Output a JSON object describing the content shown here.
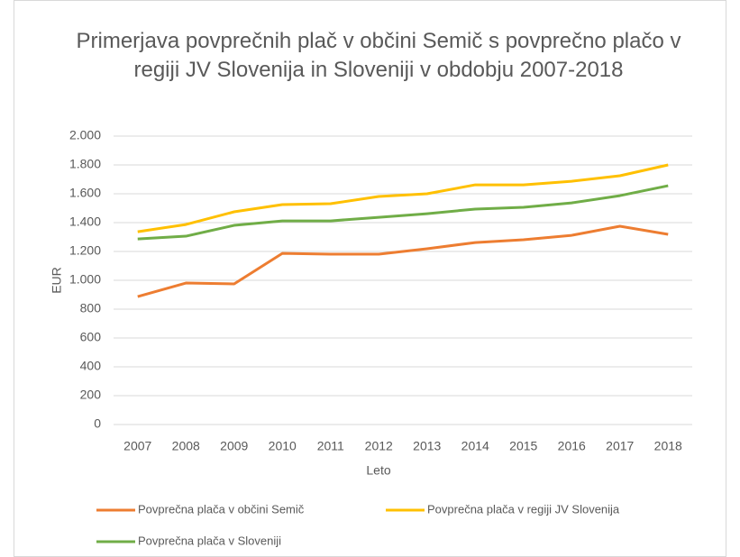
{
  "chart_data": {
    "type": "line",
    "title": "Primerjava povprečnih plač v občini Semič s povprečno plačo v regiji JV Slovenija in Sloveniji v obdobju 2007-2018",
    "xlabel": "Leto",
    "ylabel": "EUR",
    "categories": [
      "2007",
      "2008",
      "2009",
      "2010",
      "2011",
      "2012",
      "2013",
      "2014",
      "2015",
      "2016",
      "2017",
      "2018"
    ],
    "series": [
      {
        "name": "Povprečna plača v občini Semič",
        "color": "#ed7d31",
        "values": [
          887,
          981,
          975,
          1187,
          1181,
          1181,
          1219,
          1262,
          1281,
          1312,
          1375,
          1319
        ]
      },
      {
        "name": "Povprečna plača v regiji JV Slovenija",
        "color": "#ffc000",
        "values": [
          1337,
          1387,
          1475,
          1525,
          1531,
          1581,
          1600,
          1662,
          1662,
          1687,
          1725,
          1800
        ]
      },
      {
        "name": "Povprečna plača v Sloveniji",
        "color": "#70ad47",
        "values": [
          1287,
          1306,
          1381,
          1412,
          1412,
          1437,
          1462,
          1494,
          1506,
          1537,
          1587,
          1656
        ]
      }
    ],
    "ylim": [
      0,
      2000
    ],
    "yticks": [
      0,
      200,
      400,
      600,
      800,
      {
        "value": 1000,
        "label": "1.000"
      },
      {
        "value": 1200,
        "label": "1.200"
      },
      {
        "value": 1400,
        "label": "1.400"
      },
      {
        "value": 1600,
        "label": "1.600"
      },
      {
        "value": 1800,
        "label": "1.800"
      },
      {
        "value": 2000,
        "label": "2.000"
      }
    ],
    "grid": true,
    "legend": "bottom"
  }
}
